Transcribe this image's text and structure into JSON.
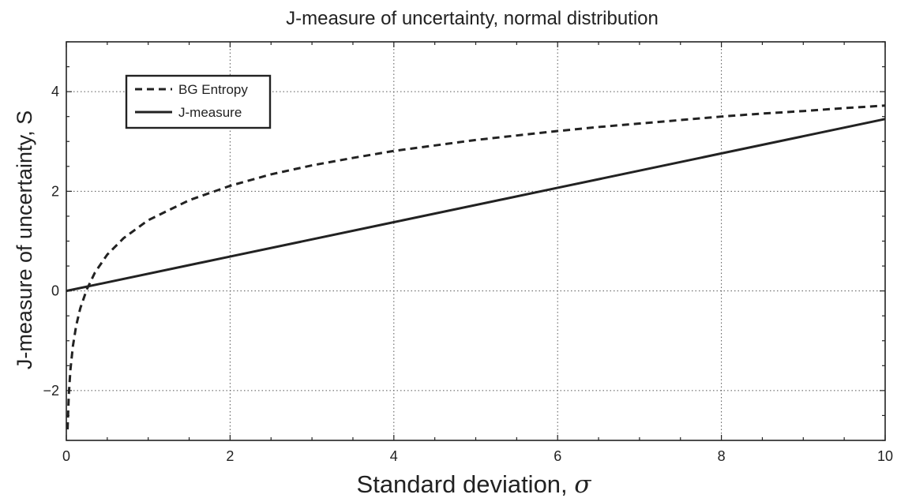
{
  "chart_data": {
    "type": "line",
    "title": "J-measure of uncertainty, normal distribution",
    "xlabel": "Standard deviation,",
    "xlabel_symbol": "σ",
    "ylabel": "J-measure of uncertainty, S",
    "xlim": [
      0,
      10
    ],
    "ylim": [
      -3,
      5
    ],
    "xticks": [
      0,
      2,
      4,
      6,
      8,
      10
    ],
    "yticks": [
      -2,
      0,
      2,
      4
    ],
    "xtick_labels": [
      "0",
      "2",
      "4",
      "6",
      "8",
      "10"
    ],
    "ytick_labels": [
      "−2",
      "0",
      "2",
      "4"
    ],
    "grid": true,
    "legend_position": "top-left",
    "series": [
      {
        "name": "BG Entropy",
        "style": "dashed",
        "color": "#222222",
        "x": [
          0.015,
          0.03,
          0.05,
          0.08,
          0.12,
          0.17,
          0.25,
          0.35,
          0.5,
          0.7,
          1.0,
          1.5,
          2.0,
          2.5,
          3.0,
          3.5,
          4.0,
          4.5,
          5.0,
          5.5,
          6.0,
          6.5,
          7.0,
          7.5,
          8.0,
          8.5,
          9.0,
          9.5,
          10.0
        ],
        "y": [
          -2.78,
          -2.09,
          -1.58,
          -1.11,
          -0.7,
          -0.35,
          0.03,
          0.37,
          0.73,
          1.06,
          1.42,
          1.82,
          2.11,
          2.34,
          2.52,
          2.67,
          2.81,
          2.92,
          3.03,
          3.12,
          3.21,
          3.29,
          3.36,
          3.43,
          3.5,
          3.56,
          3.61,
          3.67,
          3.72
        ]
      },
      {
        "name": "J-measure",
        "style": "solid",
        "color": "#222222",
        "x": [
          0,
          2,
          4,
          6,
          8,
          10
        ],
        "y": [
          0,
          0.69,
          1.38,
          2.07,
          2.76,
          3.45
        ]
      }
    ]
  }
}
